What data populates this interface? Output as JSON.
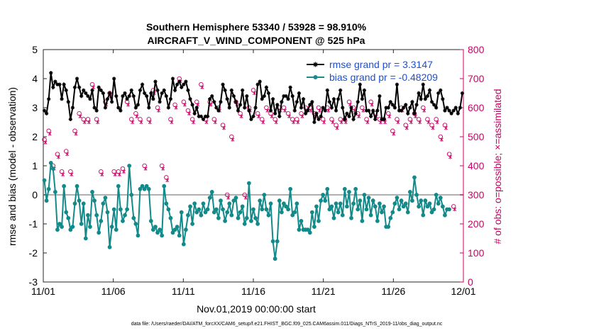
{
  "chart_data": {
    "type": "line",
    "title_line1": "Southern Hemisphere 53340 / 53928 = 98.910%",
    "title_line2": "AIRCRAFT_V_WIND_COMPONENT @ 525 hPa",
    "xlabel": "Nov.01,2019 00:00:00 start",
    "ylabel_left": "rmse and bias (model - observation)",
    "ylabel_right": "# of obs: o=possible; ×=assimilated",
    "footer": "data file: /Users/raeder/DAI/ATM_forcXX/CAM6_setup/f.e21.FHIST_BGC.f09_025.CAM6assim.011/Diags_NTrS_2019-11/obs_diag_output.nc",
    "x_ticks": [
      "11/01",
      "11/06",
      "11/11",
      "11/16",
      "11/21",
      "11/26",
      "12/01"
    ],
    "y_left_ticks": [
      "-3",
      "-2",
      "-1",
      "0",
      "1",
      "2",
      "3",
      "4",
      "5"
    ],
    "y_right_ticks": [
      "0",
      "100",
      "200",
      "300",
      "400",
      "500",
      "600",
      "700",
      "800"
    ],
    "xlim_days": [
      0,
      30
    ],
    "ylim_left": [
      -3,
      5
    ],
    "ylim_right": [
      0,
      800
    ],
    "zero_line": 0,
    "legend": [
      {
        "label": "rmse grand pr = 3.3147",
        "color": "#000000",
        "marker": "star"
      },
      {
        "label": "bias grand pr = -0.48209",
        "color": "#1a8a8a",
        "marker": "circle"
      }
    ],
    "colors": {
      "rmse": "#000000",
      "bias": "#138a8a",
      "obs": "#cc0066",
      "zero": "#b0b0b0"
    },
    "series": [
      {
        "name": "rmse",
        "values": [
          2.9,
          2.8,
          3.3,
          4.2,
          3.7,
          3.9,
          3.8,
          3.8,
          3.3,
          3.8,
          3.6,
          3.2,
          2.6,
          3.0,
          3.7,
          4.0,
          3.7,
          3.4,
          3.6,
          3.5,
          3.4,
          3.3,
          3.6,
          3.0,
          2.9,
          3.7,
          3.6,
          3.5,
          3.0,
          3.3,
          3.5,
          3.2,
          4.0,
          3.4,
          3.0,
          2.9,
          3.4,
          3.5,
          3.3,
          3.4,
          3.6,
          3.4,
          3.0,
          3.1,
          3.6,
          3.8,
          3.5,
          3.4,
          3.0,
          3.5,
          3.3,
          3.9,
          3.6,
          3.2,
          3.5,
          3.6,
          3.4,
          3.0,
          3.3,
          4.0,
          3.6,
          3.8,
          3.9,
          3.7,
          3.8,
          3.9,
          3.6,
          3.3,
          3.1,
          2.8,
          3.0,
          2.7,
          2.7,
          2.6,
          2.7,
          2.7,
          3.3,
          3.4,
          3.2,
          3.0,
          2.9,
          3.2,
          3.8,
          3.6,
          3.3,
          3.0,
          3.6,
          3.4,
          3.2,
          2.9,
          3.1,
          3.6,
          3.0,
          3.4,
          2.9,
          2.6,
          2.7,
          3.0,
          3.8,
          3.9,
          3.3,
          3.4,
          3.7,
          3.5,
          2.9,
          3.3,
          2.8,
          3.1,
          2.7,
          3.2,
          3.4,
          3.4,
          3.3,
          3.7,
          3.4,
          2.9,
          3.2,
          3.5,
          3.0,
          3.3,
          2.8,
          2.9,
          3.1,
          3.2,
          2.5,
          2.8,
          2.6,
          2.7,
          3.0,
          2.9,
          3.6,
          3.2,
          3.0,
          3.3,
          2.9,
          3.3,
          3.6,
          3.0,
          2.6,
          2.8,
          2.7,
          3.0,
          2.6,
          2.8,
          3.2,
          3.8,
          3.3,
          3.6,
          2.9,
          2.9,
          2.7,
          2.9,
          2.6,
          2.9,
          3.4,
          2.6,
          2.6,
          3.0,
          3.0,
          3.2,
          3.1,
          3.0,
          3.8,
          2.9,
          2.9,
          3.0,
          3.1,
          2.8,
          3.0,
          3.2,
          2.8,
          3.1,
          3.5,
          3.3,
          3.8,
          3.3,
          3.4,
          3.6,
          3.2,
          3.1,
          3.0,
          3.5,
          3.6,
          3.3,
          2.9,
          3.0,
          2.9,
          2.8,
          2.9,
          3.0,
          2.8,
          3.0,
          3.5
        ]
      },
      {
        "name": "bias",
        "values": [
          0.5,
          -0.2,
          0.2,
          1.1,
          0.9,
          0.1,
          -1.2,
          -1.0,
          -1.1,
          0.3,
          -0.6,
          -0.8,
          -1.2,
          -1.1,
          -0.3,
          0.3,
          -0.2,
          -1.0,
          -0.3,
          -1.5,
          -0.7,
          -1.1,
          0.1,
          -0.2,
          -0.7,
          -1.3,
          -0.9,
          -0.3,
          -0.1,
          -0.6,
          -1.8,
          -1.1,
          -0.5,
          -1.2,
          0.3,
          -0.5,
          -0.9,
          -0.7,
          -0.5,
          1.0,
          0.0,
          -0.8,
          -1.0,
          -1.4,
          0.2,
          0.3,
          0.2,
          0.3,
          0.2,
          -0.9,
          -1.2,
          -1.1,
          -1.3,
          -1.2,
          -1.4,
          0.3,
          -0.3,
          -0.5,
          -0.8,
          -1.3,
          -1.2,
          -1.1,
          -1.4,
          -0.6,
          -1.7,
          -1.2,
          -0.7,
          -0.4,
          -1.0,
          -0.3,
          -0.6,
          -0.5,
          -0.7,
          -0.3,
          -0.6,
          -0.5,
          -0.1,
          0.1,
          -0.6,
          -0.5,
          -0.8,
          -0.2,
          -0.5,
          -0.9,
          -0.6,
          -0.3,
          -0.7,
          -0.2,
          -0.1,
          -0.8,
          -0.6,
          -0.4,
          -1.0,
          -0.8,
          0.4,
          -0.9,
          -0.5,
          -0.8,
          -1.0,
          -0.2,
          -0.5,
          0.0,
          -0.5,
          -0.7,
          -0.3,
          -1.6,
          -2.2,
          -1.6,
          -0.2,
          -0.6,
          -0.3,
          -0.4,
          -0.5,
          0.2,
          -0.7,
          -0.6,
          -0.3,
          -1.2,
          -0.9,
          -1.2,
          -1.2,
          -1.2,
          -1.3,
          -0.6,
          -1.1,
          -0.4,
          -0.9,
          -0.2,
          0.0,
          -0.2,
          0.2,
          -0.5,
          -0.4,
          -0.8,
          -0.3,
          -0.6,
          -0.3,
          -0.7,
          0.2,
          -0.4,
          0.1,
          -0.8,
          -0.3,
          0.2,
          -0.5,
          -0.2,
          -0.9,
          0.0,
          -0.5,
          -0.1,
          -0.7,
          -0.2,
          -0.4,
          -0.9,
          -0.3,
          -0.6,
          -0.4,
          -1.1,
          -1.1,
          -0.8,
          -0.6,
          -0.3,
          -0.1,
          -0.5,
          -0.2,
          -0.4,
          -0.3,
          -0.6,
          0.1,
          -0.2,
          0.6,
          0.0,
          -0.4,
          -0.2,
          -0.7,
          -0.2,
          -0.4,
          -0.3,
          -0.6,
          -0.5,
          0.0,
          -0.3,
          -0.1,
          -0.4,
          -0.7,
          -0.5,
          -0.5
        ]
      },
      {
        "name": "obs_possible",
        "values": [
          490,
          560,
          520,
          560,
          400,
          460,
          440,
          460,
          380,
          400,
          450,
          420,
          380,
          340,
          520,
          580,
          580,
          620,
          560,
          640,
          560,
          700,
          680,
          620,
          560,
          590,
          380,
          600,
          620,
          560,
          650,
          380,
          380,
          420,
          380,
          400,
          390,
          610,
          620,
          580,
          560,
          640,
          580,
          560,
          560,
          620,
          400,
          540,
          560,
          620,
          660,
          620,
          600,
          580,
          400,
          380,
          360,
          320,
          560,
          600,
          610,
          600,
          700,
          560,
          620,
          560,
          590,
          620,
          560,
          620,
          620,
          600,
          680,
          560,
          560,
          600,
          620,
          620,
          560,
          580,
          600,
          700,
          540,
          560,
          300,
          560,
          500,
          580,
          620,
          520,
          580,
          620,
          300,
          600,
          600,
          520,
          660,
          540,
          580,
          380,
          560,
          600,
          600,
          520,
          580,
          620,
          560,
          620,
          600,
          680,
          600,
          620,
          580,
          600,
          560,
          600,
          560,
          620,
          580,
          540,
          600,
          560,
          600,
          520,
          580,
          560,
          600,
          600,
          560,
          620,
          600,
          580,
          560,
          600,
          540,
          580,
          560,
          620,
          560,
          580,
          620,
          560,
          600,
          620,
          580,
          520,
          600,
          580,
          560,
          600,
          620,
          560,
          580,
          600,
          560,
          520,
          560,
          540,
          580,
          600,
          520,
          540,
          560,
          580,
          600,
          560,
          540,
          520,
          560,
          600,
          580,
          560,
          560,
          500,
          600,
          620,
          560,
          580,
          540,
          520,
          560,
          480,
          500,
          560,
          540,
          420,
          440,
          300,
          260,
          280
        ]
      },
      {
        "name": "obs_assimilated",
        "values": [
          480,
          550,
          510,
          550,
          390,
          450,
          430,
          450,
          370,
          390,
          440,
          410,
          370,
          330,
          510,
          570,
          570,
          610,
          550,
          630,
          550,
          690,
          670,
          610,
          550,
          580,
          370,
          590,
          610,
          550,
          640,
          370,
          370,
          410,
          370,
          390,
          380,
          600,
          610,
          570,
          550,
          630,
          570,
          550,
          550,
          610,
          390,
          530,
          550,
          610,
          650,
          610,
          590,
          570,
          390,
          370,
          350,
          310,
          550,
          590,
          600,
          590,
          690,
          550,
          610,
          550,
          580,
          610,
          550,
          610,
          610,
          590,
          670,
          550,
          550,
          590,
          610,
          610,
          550,
          570,
          590,
          690,
          530,
          550,
          290,
          550,
          490,
          570,
          610,
          510,
          570,
          610,
          290,
          590,
          590,
          510,
          650,
          530,
          570,
          370,
          550,
          590,
          590,
          510,
          570,
          610,
          550,
          610,
          590,
          670,
          590,
          610,
          570,
          590,
          550,
          590,
          550,
          610,
          570,
          530,
          590,
          550,
          590,
          510,
          570,
          550,
          590,
          590,
          550,
          610,
          590,
          570,
          550,
          590,
          530,
          570,
          550,
          610,
          550,
          570,
          610,
          550,
          590,
          610,
          570,
          510,
          590,
          570,
          550,
          590,
          610,
          550,
          570,
          590,
          550,
          510,
          550,
          530,
          570,
          590,
          510,
          530,
          550,
          570,
          590,
          550,
          530,
          510,
          550,
          590,
          570,
          550,
          550,
          490,
          590,
          610,
          550,
          570,
          530,
          510,
          550,
          470,
          490,
          550,
          530,
          410,
          430,
          290,
          250,
          270
        ]
      }
    ]
  }
}
